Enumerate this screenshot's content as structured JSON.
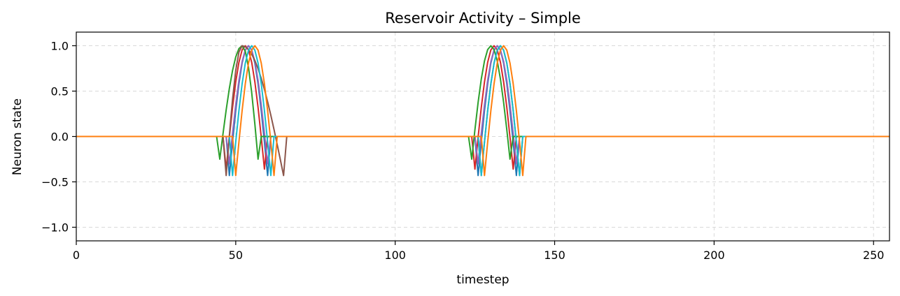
{
  "chart_data": {
    "type": "line",
    "title": "Reservoir Activity – Simple",
    "xlabel": "timestep",
    "ylabel": "Neuron state",
    "xlim": [
      0,
      255
    ],
    "ylim": [
      -1.15,
      1.15
    ],
    "xticks": [
      0,
      50,
      100,
      150,
      200,
      250
    ],
    "xtick_labels": [
      "0",
      "50",
      "100",
      "150",
      "200",
      "250"
    ],
    "yticks": [
      -1.0,
      -0.5,
      0.0,
      0.5,
      1.0
    ],
    "ytick_labels": [
      "−1.0",
      "−0.5",
      "0.0",
      "0.5",
      "1.0"
    ],
    "grid": true,
    "series": [
      {
        "color": "#1f77b4",
        "pulses": [
          {
            "start": 47,
            "end": 61,
            "peak": 54,
            "min_level": -0.43
          },
          {
            "start": 125,
            "end": 139,
            "peak": 132,
            "min_level": -0.43
          }
        ]
      },
      {
        "color": "#d62728",
        "pulses": [
          {
            "start": 46,
            "end": 60,
            "peak": 53,
            "min_level": -0.36
          },
          {
            "start": 124,
            "end": 138,
            "peak": 131,
            "min_level": -0.36
          }
        ]
      },
      {
        "color": "#9467bd",
        "pulses": [
          {
            "start": 47,
            "end": 61,
            "peak": 54,
            "min_level": -0.3
          },
          {
            "start": 125,
            "end": 139,
            "peak": 132,
            "min_level": -0.3
          }
        ]
      },
      {
        "color": "#2ca02c",
        "pulses": [
          {
            "start": 44,
            "end": 58,
            "peak": 52,
            "min_level": -0.25
          },
          {
            "start": 123,
            "end": 137,
            "peak": 130,
            "min_level": -0.25
          }
        ]
      },
      {
        "color": "#8c564b",
        "pulses": [
          {
            "start": 46,
            "end": 66,
            "peak": 52,
            "min_level": -0.43
          },
          {
            "start": 126,
            "end": 140,
            "peak": 133,
            "min_level": -0.43
          }
        ]
      },
      {
        "color": "#17becf",
        "pulses": [
          {
            "start": 48,
            "end": 62,
            "peak": 55,
            "min_level": -0.43
          },
          {
            "start": 126,
            "end": 140,
            "peak": 133,
            "min_level": -0.43
          }
        ]
      },
      {
        "color": "#ff7f0e",
        "pulses": [
          {
            "start": 49,
            "end": 63,
            "peak": 56,
            "min_level": -0.43
          },
          {
            "start": 127,
            "end": 141,
            "peak": 134,
            "min_level": -0.43
          }
        ]
      }
    ]
  }
}
